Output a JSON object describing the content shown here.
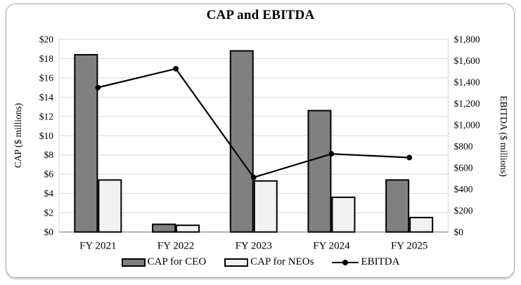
{
  "chart": {
    "title": "CAP and EBITDA",
    "left_axis": {
      "label": "CAP ($ millions)",
      "min": 0,
      "max": 20,
      "ticks": [
        {
          "value": 20,
          "label": "$20"
        },
        {
          "value": 18,
          "label": "$18"
        },
        {
          "value": 16,
          "label": "$16"
        },
        {
          "value": 14,
          "label": "$14"
        },
        {
          "value": 12,
          "label": "$12"
        },
        {
          "value": 10,
          "label": "$10"
        },
        {
          "value": 8,
          "label": "$8"
        },
        {
          "value": 6,
          "label": "$6"
        },
        {
          "value": 4,
          "label": "$4"
        },
        {
          "value": 2,
          "label": "$2"
        },
        {
          "value": 0,
          "label": "$0"
        }
      ]
    },
    "right_axis": {
      "label": "EBITDA ($ millions)",
      "min": 0,
      "max": 1800,
      "ticks": [
        {
          "value": 1800,
          "label": "$1,800"
        },
        {
          "value": 1600,
          "label": "$1,600"
        },
        {
          "value": 1400,
          "label": "$1,400"
        },
        {
          "value": 1200,
          "label": "$1,200"
        },
        {
          "value": 1000,
          "label": "$1,000"
        },
        {
          "value": 800,
          "label": "$800"
        },
        {
          "value": 600,
          "label": "$600"
        },
        {
          "value": 400,
          "label": "$400"
        },
        {
          "value": 200,
          "label": "$200"
        },
        {
          "value": 0,
          "label": "$0"
        }
      ]
    }
  },
  "legend": {
    "items": [
      {
        "label": "CAP for CEO"
      },
      {
        "label": "CAP for NEOs"
      },
      {
        "label": "EBITDA"
      }
    ]
  },
  "colors": {
    "ceo_fill": "#808080",
    "neo_fill": "#f2f2f2",
    "bar_stroke": "#000000",
    "line": "#000000",
    "grid": "#d9d9d9",
    "axis": "#9a9a9a",
    "text": "#000000"
  },
  "chart_data": {
    "type": "combo-bar-line",
    "title": "CAP and EBITDA",
    "categories": [
      "FY 2021",
      "FY 2022",
      "FY 2023",
      "FY 2024",
      "FY 2025"
    ],
    "series": [
      {
        "name": "CAP for CEO",
        "kind": "bar",
        "axis": "left",
        "values": [
          18.4,
          0.8,
          18.8,
          12.6,
          5.4
        ]
      },
      {
        "name": "CAP for NEOs",
        "kind": "bar",
        "axis": "left",
        "values": [
          5.4,
          0.7,
          5.3,
          3.6,
          1.5
        ]
      },
      {
        "name": "EBITDA",
        "kind": "line",
        "axis": "right",
        "values": [
          1350,
          1525,
          510,
          730,
          695
        ]
      }
    ],
    "xlabel": "",
    "ylabel_left": "CAP ($ millions)",
    "ylabel_right": "EBITDA ($ millions)",
    "ylim_left": [
      0,
      20
    ],
    "ylim_right": [
      0,
      1800
    ],
    "grid": true,
    "legend_position": "bottom"
  }
}
